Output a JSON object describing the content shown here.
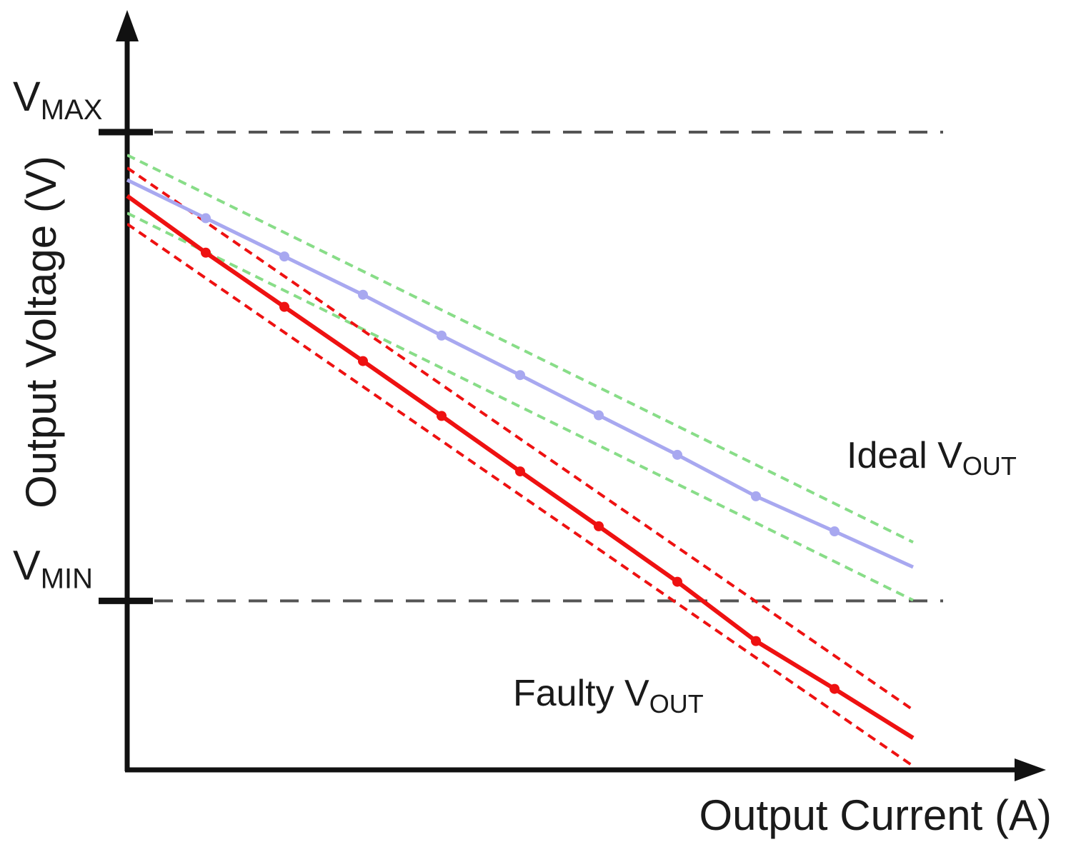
{
  "chart_data": {
    "type": "line",
    "xlabel": "Output Current (A)",
    "ylabel": "Output Voltage (V)",
    "xlim": [
      0,
      100
    ],
    "ylim": [
      0,
      100
    ],
    "grid": false,
    "legend": "none",
    "levels": [
      {
        "base": "V",
        "sub": "MAX",
        "y": 100
      },
      {
        "base": "V",
        "sub": "MIN",
        "y": 26.5
      }
    ],
    "series": [
      {
        "name": "Ideal V",
        "name_sub": "OUT",
        "color": "#a8a8f0",
        "x": [
          0,
          10,
          20,
          30,
          40,
          50,
          60,
          70,
          80,
          90,
          100
        ],
        "y": [
          92.5,
          86.5,
          80.5,
          74.5,
          68.1,
          61.9,
          55.6,
          49.4,
          42.9,
          37.4,
          31.8
        ],
        "band": {
          "color": "#88dd88",
          "upper_offset": 3.9,
          "lower_offset": -5.2
        }
      },
      {
        "name": "Faulty V",
        "name_sub": "OUT",
        "color": "#ee1111",
        "x": [
          0,
          10,
          20,
          30,
          40,
          50,
          60,
          70,
          80,
          90,
          100
        ],
        "y": [
          90.0,
          81.1,
          72.6,
          64.1,
          55.5,
          46.8,
          38.2,
          29.5,
          20.2,
          12.7,
          5.0
        ],
        "band": {
          "color": "#ee1111",
          "upper_offset": 4.4,
          "lower_offset": -4.4
        }
      }
    ]
  }
}
